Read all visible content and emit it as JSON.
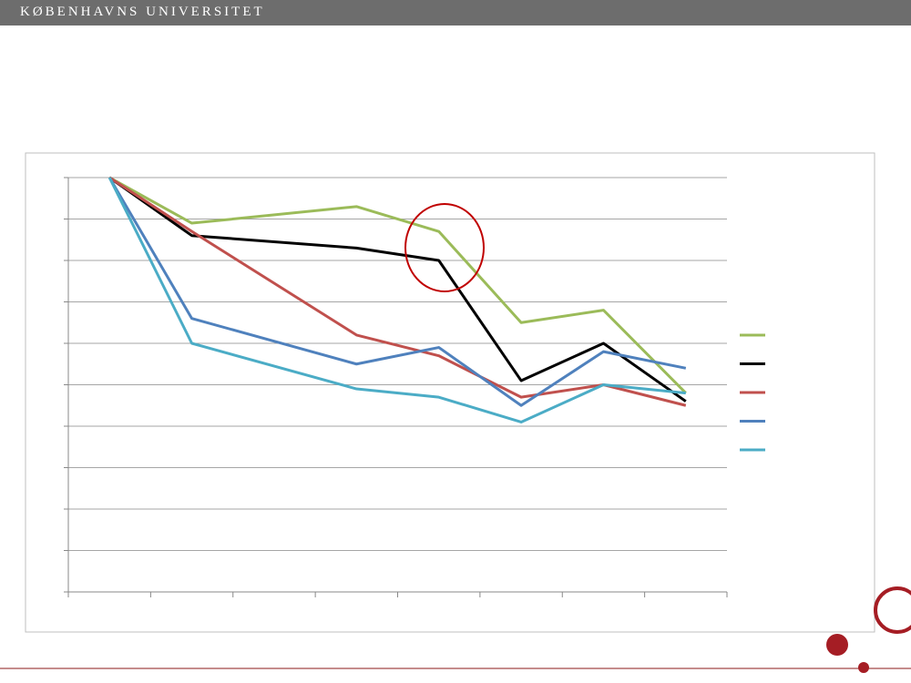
{
  "header": {
    "title": "KØBENHAVNS UNIVERSITET"
  },
  "chart_data": {
    "type": "line",
    "x": [
      0.5,
      1.5,
      3.5,
      4.5,
      5.5,
      6.5,
      7.5
    ],
    "xlim": [
      0,
      8
    ],
    "xticks": [
      0,
      1,
      2,
      3,
      4,
      5,
      6,
      7,
      8
    ],
    "ylim": [
      0,
      10
    ],
    "yticks": [
      0,
      1,
      2,
      3,
      4,
      5,
      6,
      7,
      8,
      9,
      10
    ],
    "grid": true,
    "series": [
      {
        "color": "#9bbb59",
        "values": [
          10,
          8.9,
          9.3,
          8.7,
          6.5,
          6.8,
          4.8
        ]
      },
      {
        "color": "#000000",
        "values": [
          10,
          8.6,
          8.3,
          8.0,
          5.1,
          6.0,
          4.6
        ]
      },
      {
        "color": "#c0504d",
        "values": [
          10,
          8.7,
          6.2,
          5.7,
          4.7,
          5.0,
          4.5
        ]
      },
      {
        "color": "#4f81bd",
        "values": [
          10,
          6.6,
          5.5,
          5.9,
          4.5,
          5.8,
          5.4
        ]
      },
      {
        "color": "#4bacc6",
        "values": [
          10,
          6.0,
          4.9,
          4.7,
          4.1,
          5.0,
          4.8
        ]
      }
    ]
  }
}
